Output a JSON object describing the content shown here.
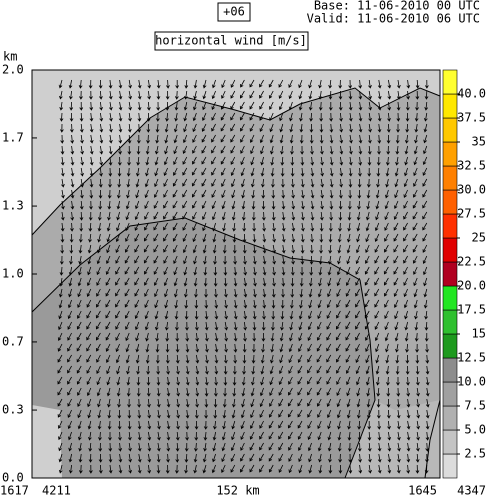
{
  "chart_data": {
    "type": "cross-section",
    "run_label": "+06",
    "base_label": "Base: 11-06-2010  00 UTC",
    "valid_label": "Valid: 11-06-2010  06 UTC",
    "title": "horizontal wind [m/s]",
    "y_label": "km",
    "ylim": [
      0,
      2
    ],
    "yticks": [
      {
        "value": 0,
        "label": "0.0"
      },
      {
        "value": 0.333,
        "label": "0.3"
      },
      {
        "value": 0.667,
        "label": "0.7"
      },
      {
        "value": 1,
        "label": "1.0"
      },
      {
        "value": 1.333,
        "label": "1.3"
      },
      {
        "value": 1.667,
        "label": "1.7"
      },
      {
        "value": 2,
        "label": "2.0"
      }
    ],
    "x_labels": {
      "left_outer": "1617",
      "left_inner": "4211",
      "center": "152 km",
      "right_inner": "1645",
      "right_outer": "4347"
    },
    "colorbar": {
      "lim": [
        0,
        42.5
      ],
      "ticks": [
        2.5,
        {
          "value": 5,
          "label": "5.0"
        },
        7.5,
        {
          "value": 10,
          "label": "10.0"
        },
        12.5,
        15,
        17.5,
        {
          "value": 20,
          "label": "20.0"
        },
        22.5,
        25,
        27.5,
        {
          "value": 30,
          "label": "30.0"
        },
        32.5,
        35,
        37.5,
        {
          "value": 40,
          "label": "40.0"
        }
      ],
      "colors": [
        "#dcdcdc",
        "#c4c4c4",
        "#b0b0b0",
        "#a0a0a0",
        "#8c8c8c",
        "#1e9a1e",
        "#2fc02f",
        "#22e622",
        "#b00020",
        "#e00000",
        "#ff3000",
        "#ff6000",
        "#ff8000",
        "#ffa000",
        "#ffc800",
        "#ffe800",
        "#ffff30"
      ]
    }
  }
}
